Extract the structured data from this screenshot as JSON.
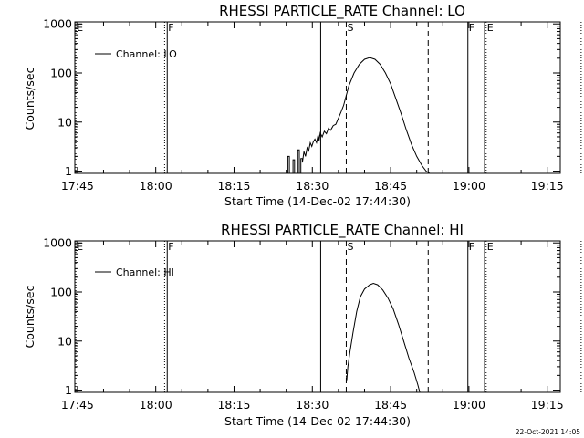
{
  "footer": {
    "timestamp": "22-Oct-2021 14:05"
  },
  "colors": {
    "background": "#ffffff",
    "foreground": "#000000"
  },
  "chart_data": [
    {
      "type": "line",
      "title": "RHESSI PARTICLE_RATE Channel: LO",
      "xlabel": "Start Time (14-Dec-02 17:44:30)",
      "ylabel": "Counts/sec",
      "yscale": "log",
      "xlim": [
        -0.5,
        92.5
      ],
      "ylim": [
        0.9,
        1100
      ],
      "x_units": "minutes after 17:45",
      "xticks": [
        {
          "x": 0,
          "label": "17:45"
        },
        {
          "x": 15,
          "label": "18:00"
        },
        {
          "x": 30,
          "label": "18:15"
        },
        {
          "x": 45,
          "label": "18:30"
        },
        {
          "x": 60,
          "label": "18:45"
        },
        {
          "x": 75,
          "label": "19:00"
        },
        {
          "x": 90,
          "label": "19:15"
        }
      ],
      "yticks": [
        {
          "y": 1,
          "label": "1"
        },
        {
          "y": 10,
          "label": "10"
        },
        {
          "y": 100,
          "label": "100"
        },
        {
          "y": 1000,
          "label": "1000"
        }
      ],
      "legend": {
        "label": "Channel: LO",
        "placement": "top-left"
      },
      "markers": [
        {
          "x": -0.3,
          "label": "E",
          "style": "dotted"
        },
        {
          "x": 16.7,
          "label": "",
          "style": "dotted"
        },
        {
          "x": 17.2,
          "label": "F",
          "style": "solid"
        },
        {
          "x": 46.6,
          "label": "",
          "style": "solid"
        },
        {
          "x": 51.5,
          "label": "S",
          "style": "dashed"
        },
        {
          "x": 67.2,
          "label": "",
          "style": "dashed"
        },
        {
          "x": 74.8,
          "label": "F",
          "style": "solid"
        },
        {
          "x": 78.0,
          "label": "",
          "style": "solid"
        },
        {
          "x": 78.3,
          "label": "E",
          "style": "dotted"
        },
        {
          "x": 96.5,
          "label": "",
          "style": "dotted"
        }
      ],
      "series": [
        {
          "name": "Channel: LO",
          "points": [
            [
              40.3,
              0.9
            ],
            [
              40.3,
              2
            ],
            [
              40.6,
              2
            ],
            [
              40.6,
              0.9
            ],
            [
              41.3,
              0.9
            ],
            [
              41.3,
              1.7
            ],
            [
              41.6,
              1.7
            ],
            [
              41.6,
              0.9
            ],
            [
              42.2,
              0.9
            ],
            [
              42.2,
              2.7
            ],
            [
              42.5,
              2.7
            ],
            [
              42.5,
              0.9
            ],
            [
              42.8,
              0.9
            ],
            [
              42.8,
              1.8
            ],
            [
              43.1,
              1.8
            ],
            [
              43.1,
              1.5
            ],
            [
              43.4,
              2.5
            ],
            [
              43.7,
              2.0
            ],
            [
              44.0,
              3.0
            ],
            [
              44.3,
              2.6
            ],
            [
              44.6,
              3.8
            ],
            [
              44.9,
              3.2
            ],
            [
              45.2,
              4.0
            ],
            [
              45.5,
              4.5
            ],
            [
              45.8,
              3.8
            ],
            [
              46.1,
              5.5
            ],
            [
              46.3,
              4.2
            ],
            [
              46.5,
              6.0
            ],
            [
              46.9,
              5.0
            ],
            [
              47.3,
              6.5
            ],
            [
              47.7,
              5.8
            ],
            [
              48.1,
              7.5
            ],
            [
              48.5,
              6.8
            ],
            [
              49.0,
              8.5
            ],
            [
              49.5,
              9.0
            ],
            [
              50.0,
              12.0
            ],
            [
              50.5,
              16.0
            ],
            [
              51.0,
              22.0
            ],
            [
              51.5,
              35.0
            ],
            [
              52.0,
              55.0
            ],
            [
              53.0,
              100.0
            ],
            [
              54.0,
              150.0
            ],
            [
              55.0,
              190.0
            ],
            [
              56.0,
              205.0
            ],
            [
              57.0,
              190.0
            ],
            [
              58.0,
              150.0
            ],
            [
              59.0,
              100.0
            ],
            [
              60.0,
              60.0
            ],
            [
              61.0,
              30.0
            ],
            [
              62.0,
              15.0
            ],
            [
              63.0,
              7.0
            ],
            [
              64.0,
              3.5
            ],
            [
              65.0,
              2.0
            ],
            [
              66.0,
              1.3
            ],
            [
              66.8,
              1.0
            ],
            [
              67.5,
              0.9
            ]
          ]
        }
      ]
    },
    {
      "type": "line",
      "title": "RHESSI PARTICLE_RATE Channel: HI",
      "xlabel": "Start Time (14-Dec-02 17:44:30)",
      "ylabel": "Counts/sec",
      "yscale": "log",
      "xlim": [
        -0.5,
        92.5
      ],
      "ylim": [
        0.9,
        1100
      ],
      "x_units": "minutes after 17:45",
      "xticks": [
        {
          "x": 0,
          "label": "17:45"
        },
        {
          "x": 15,
          "label": "18:00"
        },
        {
          "x": 30,
          "label": "18:15"
        },
        {
          "x": 45,
          "label": "18:30"
        },
        {
          "x": 60,
          "label": "18:45"
        },
        {
          "x": 75,
          "label": "19:00"
        },
        {
          "x": 90,
          "label": "19:15"
        }
      ],
      "yticks": [
        {
          "y": 1,
          "label": "1"
        },
        {
          "y": 10,
          "label": "10"
        },
        {
          "y": 100,
          "label": "100"
        },
        {
          "y": 1000,
          "label": "1000"
        }
      ],
      "legend": {
        "label": "Channel: HI",
        "placement": "top-left"
      },
      "markers": [
        {
          "x": -0.3,
          "label": "E",
          "style": "dotted"
        },
        {
          "x": 16.7,
          "label": "",
          "style": "dotted"
        },
        {
          "x": 17.2,
          "label": "F",
          "style": "solid"
        },
        {
          "x": 46.6,
          "label": "",
          "style": "solid"
        },
        {
          "x": 51.5,
          "label": "S",
          "style": "dashed"
        },
        {
          "x": 67.2,
          "label": "",
          "style": "dashed"
        },
        {
          "x": 74.8,
          "label": "F",
          "style": "solid"
        },
        {
          "x": 78.0,
          "label": "",
          "style": "solid"
        },
        {
          "x": 78.3,
          "label": "E",
          "style": "dotted"
        },
        {
          "x": 96.5,
          "label": "",
          "style": "dotted"
        }
      ],
      "series": [
        {
          "name": "Channel: HI",
          "points": [
            [
              51.5,
              2.0
            ],
            [
              51.6,
              1.6
            ],
            [
              51.8,
              3.0
            ],
            [
              52.2,
              6.0
            ],
            [
              52.8,
              15.0
            ],
            [
              53.5,
              40.0
            ],
            [
              54.2,
              80.0
            ],
            [
              55.0,
              115.0
            ],
            [
              56.0,
              140.0
            ],
            [
              56.7,
              150.0
            ],
            [
              57.5,
              140.0
            ],
            [
              58.5,
              110.0
            ],
            [
              59.5,
              75.0
            ],
            [
              60.5,
              45.0
            ],
            [
              61.5,
              22.0
            ],
            [
              62.5,
              10.0
            ],
            [
              63.5,
              4.5
            ],
            [
              64.5,
              2.3
            ],
            [
              65.2,
              1.3
            ],
            [
              65.6,
              0.9
            ]
          ]
        }
      ]
    }
  ]
}
